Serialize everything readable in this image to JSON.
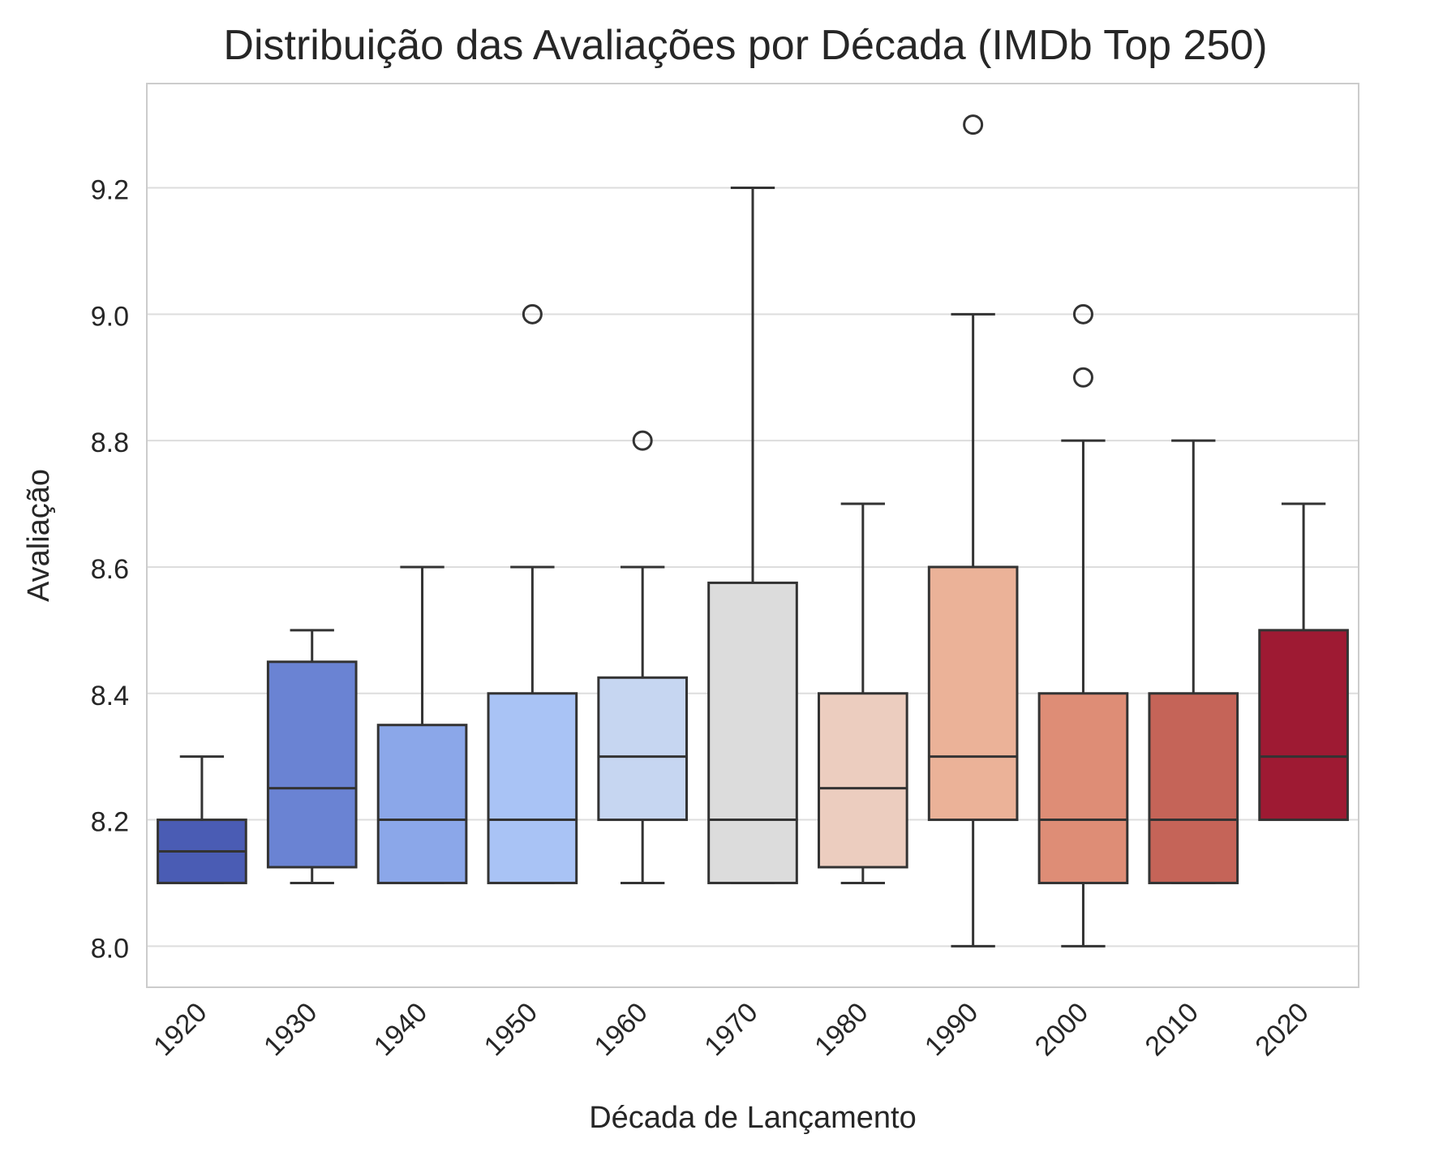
{
  "chart_data": {
    "type": "box",
    "title": "Distribuição das Avaliações por Década (IMDb Top 250)",
    "xlabel": "Década de Lançamento",
    "ylabel": "Avaliação",
    "ylim": [
      7.935,
      9.365
    ],
    "yticks": [
      8.0,
      8.2,
      8.4,
      8.6,
      8.8,
      9.0,
      9.2
    ],
    "ytick_labels": [
      "8.0",
      "8.2",
      "8.4",
      "8.6",
      "8.8",
      "9.0",
      "9.2"
    ],
    "grid": "horizontal",
    "categories": [
      "1920",
      "1930",
      "1940",
      "1950",
      "1960",
      "1970",
      "1980",
      "1990",
      "2000",
      "2010",
      "2020"
    ],
    "boxes": [
      {
        "category": "1920",
        "whisker_low": 8.1,
        "q1": 8.1,
        "median": 8.15,
        "q3": 8.2,
        "whisker_high": 8.3,
        "outliers": [],
        "color": "#4a5cb4"
      },
      {
        "category": "1930",
        "whisker_low": 8.1,
        "q1": 8.125,
        "median": 8.25,
        "q3": 8.45,
        "whisker_high": 8.5,
        "outliers": [],
        "color": "#6a83d3"
      },
      {
        "category": "1940",
        "whisker_low": 8.1,
        "q1": 8.1,
        "median": 8.2,
        "q3": 8.35,
        "whisker_high": 8.6,
        "outliers": [],
        "color": "#8ba7e9"
      },
      {
        "category": "1950",
        "whisker_low": 8.1,
        "q1": 8.1,
        "median": 8.2,
        "q3": 8.4,
        "whisker_high": 8.6,
        "outliers": [
          9.0
        ],
        "color": "#a9c3f5"
      },
      {
        "category": "1960",
        "whisker_low": 8.1,
        "q1": 8.2,
        "median": 8.3,
        "q3": 8.425,
        "whisker_high": 8.6,
        "outliers": [
          8.8
        ],
        "color": "#c6d6f1"
      },
      {
        "category": "1970",
        "whisker_low": 8.1,
        "q1": 8.1,
        "median": 8.2,
        "q3": 8.575,
        "whisker_high": 9.2,
        "outliers": [],
        "color": "#dcdcdc"
      },
      {
        "category": "1980",
        "whisker_low": 8.1,
        "q1": 8.125,
        "median": 8.25,
        "q3": 8.4,
        "whisker_high": 8.7,
        "outliers": [],
        "color": "#eccdbf"
      },
      {
        "category": "1990",
        "whisker_low": 8.0,
        "q1": 8.2,
        "median": 8.3,
        "q3": 8.6,
        "whisker_high": 9.0,
        "outliers": [
          9.3
        ],
        "color": "#ebb298"
      },
      {
        "category": "2000",
        "whisker_low": 8.0,
        "q1": 8.1,
        "median": 8.2,
        "q3": 8.4,
        "whisker_high": 8.8,
        "outliers": [
          9.0,
          8.9
        ],
        "color": "#de8d76"
      },
      {
        "category": "2010",
        "whisker_low": 8.1,
        "q1": 8.1,
        "median": 8.2,
        "q3": 8.4,
        "whisker_high": 8.8,
        "outliers": [],
        "color": "#c56458"
      },
      {
        "category": "2020",
        "whisker_low": 8.2,
        "q1": 8.2,
        "median": 8.3,
        "q3": 8.5,
        "whisker_high": 8.7,
        "outliers": [],
        "color": "#9e1a33"
      }
    ]
  }
}
